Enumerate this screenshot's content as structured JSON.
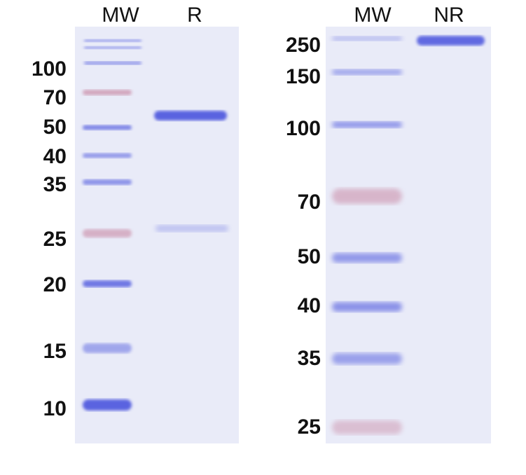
{
  "panels": [
    {
      "lane_labels": [
        "MW",
        "R"
      ],
      "markers": [
        "100",
        "70",
        "50",
        "40",
        "35",
        "25",
        "20",
        "15",
        "10"
      ]
    },
    {
      "lane_labels": [
        "MW",
        "NR"
      ],
      "markers": [
        "250",
        "150",
        "100",
        "70",
        "50",
        "40",
        "35",
        "25"
      ]
    }
  ],
  "colors": {
    "gel_background": "#e9ebf8",
    "blue_band": "#5a63e0",
    "pink_band": "#c98aa6"
  }
}
